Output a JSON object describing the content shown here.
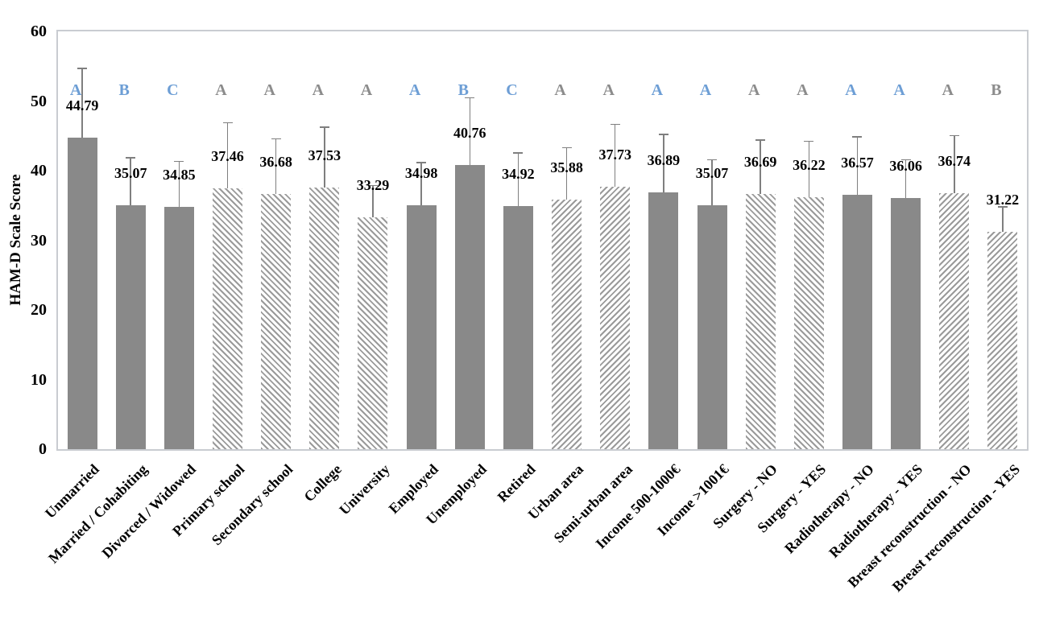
{
  "chart_data": {
    "type": "bar",
    "title": "",
    "xlabel": "",
    "ylabel": "HAM-D Scale Score",
    "ylim": [
      0,
      60
    ],
    "yticks": [
      0,
      10,
      20,
      30,
      40,
      50,
      60
    ],
    "grid": false,
    "legend": "none",
    "categories": [
      "Unmarried",
      "Married / Cohabiting",
      "Divorced / Widowed",
      "Primary school",
      "Secondary school",
      "College",
      "University",
      "Employed",
      "Unemployed",
      "Retired",
      "Urban area",
      "Semi-urban area",
      "Income 500-1000€",
      "Income >1001€",
      "Surgery - NO",
      "Surgery - YES",
      "Radiotherapy - NO",
      "Radiotherapy - YES",
      "Breast reconstruction - NO",
      "Breast reconstruction - YES"
    ],
    "values": [
      44.79,
      35.07,
      34.85,
      37.46,
      36.68,
      37.53,
      33.29,
      34.98,
      40.76,
      34.92,
      35.88,
      37.73,
      36.89,
      35.07,
      36.69,
      36.22,
      36.57,
      36.06,
      36.74,
      31.22
    ],
    "errors_plus": [
      9.9,
      6.8,
      6.5,
      9.4,
      7.9,
      8.7,
      4.6,
      6.2,
      9.7,
      7.6,
      7.4,
      8.9,
      8.3,
      6.5,
      7.7,
      8.0,
      8.3,
      5.5,
      8.3,
      3.6
    ],
    "significance_letters": [
      "A",
      "B",
      "C",
      "A",
      "A",
      "A",
      "A",
      "A",
      "B",
      "C",
      "A",
      "A",
      "A",
      "A",
      "A",
      "A",
      "A",
      "A",
      "A",
      "B"
    ],
    "letter_colors": [
      "blue",
      "blue",
      "blue",
      "gray",
      "gray",
      "gray",
      "gray",
      "blue",
      "blue",
      "blue",
      "gray",
      "gray",
      "blue",
      "blue",
      "gray",
      "gray",
      "blue",
      "blue",
      "gray",
      "gray"
    ],
    "bar_fills": [
      "solid",
      "solid",
      "solid",
      "hatch-down",
      "hatch-down",
      "hatch-down",
      "hatch-down",
      "solid",
      "solid",
      "solid",
      "hatch-up",
      "hatch-up",
      "solid",
      "solid",
      "hatch-down",
      "hatch-down",
      "solid",
      "solid",
      "hatch-up",
      "hatch-up"
    ],
    "colors": {
      "solid_bar_fill": "#898989",
      "hatch_line": "#9a9a9a",
      "error_bar": "#7f7f7f",
      "letter_blue": "#6d9ed5",
      "letter_gray": "#8c8c8c",
      "plot_border": "#c9ccd1",
      "text": "#000000"
    }
  }
}
